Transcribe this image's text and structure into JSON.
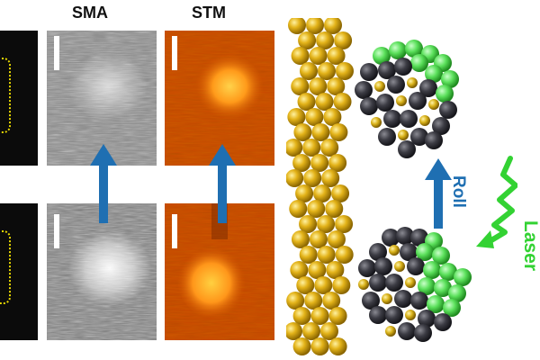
{
  "figure": {
    "labels": {
      "sma": "SMA",
      "stm": "STM",
      "roll": "Roll",
      "laser": "Laser"
    },
    "colors": {
      "arrow_blue": "#1f6fb2",
      "laser_green": "#33d233",
      "gold_atom": "#e3b319",
      "dark_atom": "#3c3c44",
      "highlight_atom": "#5be05b",
      "stm_hot": "#ffb020",
      "stm_base": "#c84a00",
      "dotted_outline": "#e8d800"
    }
  }
}
